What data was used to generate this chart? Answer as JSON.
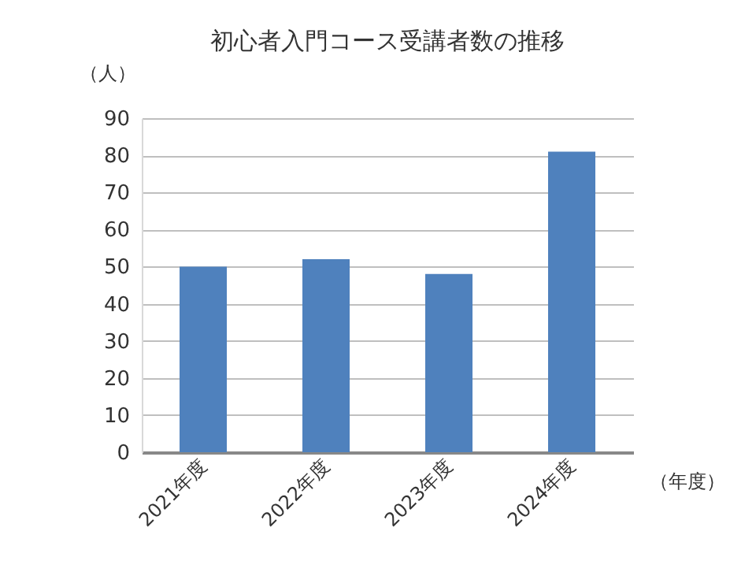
{
  "chart_data": {
    "type": "bar",
    "title": "初心者入門コース受講者数の推移",
    "xlabel": "（年度）",
    "ylabel": "（人）",
    "categories": [
      "2021年度",
      "2022年度",
      "2023年度",
      "2024年度"
    ],
    "values": [
      50,
      52,
      48,
      81
    ],
    "color": "#4f81bd",
    "ylim": [
      0,
      90
    ],
    "yticks": [
      0,
      10,
      20,
      30,
      40,
      50,
      60,
      70,
      80,
      90
    ],
    "grid": "y"
  }
}
